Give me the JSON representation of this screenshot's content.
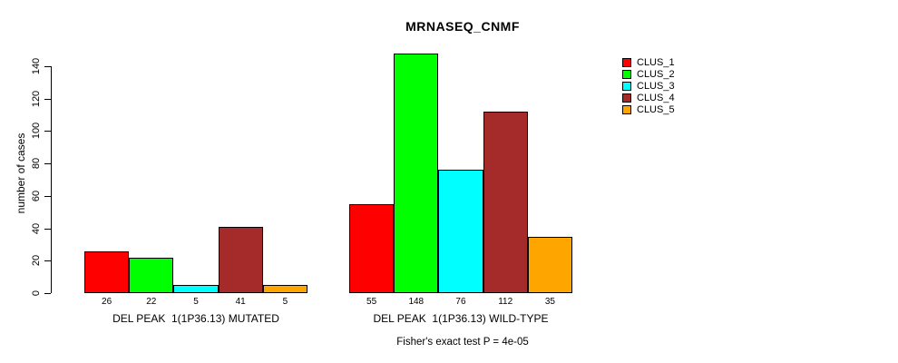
{
  "title": "MRNASEQ_CNMF",
  "chart_data": {
    "type": "bar",
    "title": "MRNASEQ_CNMF",
    "ylabel": "number of cases",
    "xlabel": "",
    "annotation": "Fisher's exact test P = 4e-05",
    "ylim": [
      0,
      148
    ],
    "yticks": [
      0,
      20,
      40,
      60,
      80,
      100,
      120,
      140
    ],
    "grid": false,
    "legend_position": "right-outside",
    "series": [
      {
        "name": "CLUS_1",
        "color": "#ff0000"
      },
      {
        "name": "CLUS_2",
        "color": "#00ff00"
      },
      {
        "name": "CLUS_3",
        "color": "#00ffff"
      },
      {
        "name": "CLUS_4",
        "color": "#a52a2a"
      },
      {
        "name": "CLUS_5",
        "color": "#ffa500"
      }
    ],
    "groups": [
      {
        "label": "DEL PEAK  1(1P36.13) MUTATED",
        "values": [
          26,
          22,
          5,
          41,
          5
        ]
      },
      {
        "label": "DEL PEAK  1(1P36.13) WILD-TYPE",
        "values": [
          55,
          148,
          76,
          112,
          35
        ]
      }
    ]
  },
  "colors": {
    "axis": "#000000",
    "text": "#000000",
    "background": "#ffffff"
  }
}
